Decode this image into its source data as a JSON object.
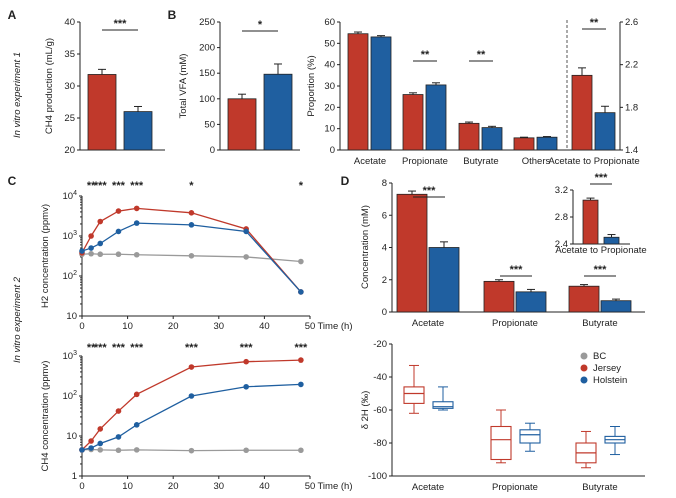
{
  "colors": {
    "jersey": "#c0392b",
    "holstein": "#1f5fa0",
    "bc": "#9a9a9a",
    "axis": "#222222"
  },
  "side_labels": {
    "exp1": "In vitro experiment 1",
    "exp2": "In vitro experiment 2"
  },
  "chart_data": [
    {
      "panel": "A",
      "type": "bar",
      "ylabel": "CH4 production (mL/g)",
      "ylim": [
        20,
        40
      ],
      "yticks": [
        20,
        25,
        30,
        35,
        40
      ],
      "series": [
        {
          "name": "Jersey",
          "values": [
            31.8
          ],
          "err": [
            0.8
          ]
        },
        {
          "name": "Holstein",
          "values": [
            26.0
          ],
          "err": [
            0.8
          ]
        }
      ],
      "significance": [
        "***"
      ]
    },
    {
      "panel": "B",
      "type": "bar",
      "ylabel": "Total VFA (mM)",
      "ylim": [
        0,
        250
      ],
      "yticks": [
        0,
        50,
        100,
        150,
        200,
        250
      ],
      "series": [
        {
          "name": "Jersey",
          "values": [
            100
          ],
          "err": [
            9
          ]
        },
        {
          "name": "Holstein",
          "values": [
            148
          ],
          "err": [
            20
          ]
        }
      ],
      "significance": [
        "*"
      ]
    },
    {
      "panel": "B",
      "type": "bar",
      "ylabel": "Proportion (%)",
      "ylim": [
        0,
        60
      ],
      "yticks": [
        0,
        10,
        20,
        30,
        40,
        50,
        60
      ],
      "categories": [
        "Acetate",
        "Propionate",
        "Butyrate",
        "Others"
      ],
      "series": [
        {
          "name": "Jersey",
          "values": [
            54.5,
            26.0,
            12.5,
            5.7
          ],
          "err": [
            0.8,
            0.8,
            0.6,
            0.3
          ]
        },
        {
          "name": "Holstein",
          "values": [
            53.0,
            30.5,
            10.5,
            6.0
          ],
          "err": [
            0.6,
            1.0,
            0.6,
            0.3
          ]
        }
      ],
      "significance": [
        "",
        "**",
        "**",
        ""
      ]
    },
    {
      "panel": "B",
      "type": "bar",
      "ylabel": "",
      "ylim": [
        1.4,
        2.6
      ],
      "yticks": [
        1.4,
        1.8,
        2.2,
        2.6
      ],
      "categories": [
        "Acetate to Propionate"
      ],
      "series": [
        {
          "name": "Jersey",
          "values": [
            2.1
          ],
          "err": [
            0.07
          ]
        },
        {
          "name": "Holstein",
          "values": [
            1.75
          ],
          "err": [
            0.06
          ]
        }
      ],
      "significance": [
        "**"
      ]
    },
    {
      "panel": "C",
      "type": "line",
      "scale": "log",
      "ylabel": "H2 concentration (ppmv)",
      "xlabel": "Time (h)",
      "xlim": [
        0,
        50
      ],
      "xticks": [
        0,
        10,
        20,
        30,
        40,
        50
      ],
      "yticks": [
        10,
        100,
        1000,
        10000
      ],
      "ylim": [
        10,
        10000
      ],
      "x": [
        0,
        2,
        4,
        8,
        12,
        24,
        36,
        48
      ],
      "series": [
        {
          "name": "BC",
          "values": [
            350,
            360,
            350,
            350,
            340,
            320,
            300,
            230
          ]
        },
        {
          "name": "Jersey",
          "values": [
            380,
            1000,
            2300,
            4200,
            4900,
            3800,
            1500,
            40
          ]
        },
        {
          "name": "Holstein",
          "values": [
            420,
            500,
            650,
            1300,
            2100,
            1900,
            1300,
            40
          ]
        }
      ],
      "significance": [
        [
          "2",
          "**"
        ],
        [
          "4",
          "***"
        ],
        [
          "8",
          "***"
        ],
        [
          "12",
          "***"
        ],
        [
          "24",
          "*"
        ],
        [
          "48",
          "*"
        ]
      ]
    },
    {
      "panel": "C",
      "type": "line",
      "scale": "log",
      "ylabel": "CH4 concentration (ppmv)",
      "xlabel": "Time (h)",
      "xlim": [
        0,
        50
      ],
      "xticks": [
        0,
        10,
        20,
        30,
        40,
        50
      ],
      "yticks": [
        1,
        10,
        100,
        1000
      ],
      "ylim": [
        1,
        1000
      ],
      "x": [
        0,
        2,
        4,
        8,
        12,
        24,
        36,
        48
      ],
      "series": [
        {
          "name": "BC",
          "values": [
            4.5,
            4.6,
            4.5,
            4.4,
            4.5,
            4.3,
            4.4,
            4.4
          ]
        },
        {
          "name": "Jersey",
          "values": [
            4.5,
            7.5,
            15,
            42,
            110,
            530,
            720,
            790
          ]
        },
        {
          "name": "Holstein",
          "values": [
            4.5,
            5.0,
            6.5,
            9.5,
            19,
            100,
            170,
            195
          ]
        }
      ],
      "significance": [
        [
          "2",
          "**"
        ],
        [
          "4",
          "***"
        ],
        [
          "8",
          "***"
        ],
        [
          "12",
          "***"
        ],
        [
          "24",
          "***"
        ],
        [
          "36",
          "***"
        ],
        [
          "48",
          "***"
        ]
      ]
    },
    {
      "panel": "D",
      "type": "bar",
      "ylabel": "Concentration (mM)",
      "ylim": [
        0,
        8
      ],
      "yticks": [
        0,
        2,
        4,
        6,
        8
      ],
      "categories": [
        "Acetate",
        "Propionate",
        "Butyrate"
      ],
      "series": [
        {
          "name": "Jersey",
          "values": [
            7.3,
            1.9,
            1.6
          ],
          "err": [
            0.2,
            0.1,
            0.1
          ]
        },
        {
          "name": "Holstein",
          "values": [
            4.0,
            1.25,
            0.7
          ],
          "err": [
            0.35,
            0.15,
            0.1
          ]
        }
      ],
      "significance": [
        "***",
        "***",
        "***"
      ]
    },
    {
      "panel": "D",
      "type": "bar",
      "inset": true,
      "categories": [
        "Acetate to Propionate"
      ],
      "ylim": [
        2.4,
        3.2
      ],
      "yticks": [
        2.4,
        2.8,
        3.2
      ],
      "series": [
        {
          "name": "Jersey",
          "values": [
            3.05
          ],
          "err": [
            0.03
          ]
        },
        {
          "name": "Holstein",
          "values": [
            2.5
          ],
          "err": [
            0.04
          ]
        }
      ],
      "significance": [
        "***"
      ]
    },
    {
      "panel": "D",
      "type": "box",
      "ylabel": "δ 2H (‰)",
      "ylim": [
        -100,
        -20
      ],
      "yticks": [
        -100,
        -80,
        -60,
        -40,
        -20
      ],
      "categories": [
        "Acetate",
        "Propionate",
        "Butyrate"
      ],
      "series": [
        {
          "name": "Jersey",
          "boxes": [
            [
              -62,
              -56,
              -50,
              -46,
              -33
            ],
            [
              -92,
              -90,
              -78,
              -70,
              -60
            ],
            [
              -95,
              -92,
              -86,
              -80,
              -73
            ]
          ]
        },
        {
          "name": "Holstein",
          "boxes": [
            [
              -60,
              -59,
              -58,
              -55,
              -46
            ],
            [
              -85,
              -80,
              -75,
              -72,
              -68
            ],
            [
              -87,
              -80,
              -78,
              -76,
              -70
            ]
          ]
        }
      ],
      "legend": [
        "BC",
        "Jersey",
        "Holstein"
      ]
    }
  ]
}
